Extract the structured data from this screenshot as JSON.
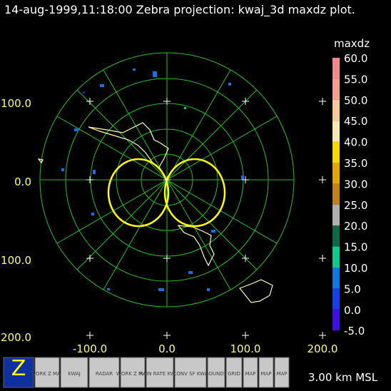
{
  "header": {
    "title": "14-aug-1999,11:18:00  Zebra projection: kwaj_3d maxdz plot."
  },
  "plot": {
    "y_labels": [
      "100.0",
      "0.0",
      "100.0",
      "200.0"
    ],
    "x_labels": [
      "-100.0",
      "0.0",
      "100.0",
      "200.0"
    ]
  },
  "colorbar": {
    "title": "maxdz",
    "labels": [
      "60.0",
      "55.0",
      "50.0",
      "45.0",
      "40.0",
      "35.0",
      "30.0",
      "25.0",
      "20.0",
      "15.0",
      "10.0",
      "5.0",
      "0.0",
      "-5.0"
    ],
    "colors": [
      "#f08a8a",
      "#f4a090",
      "#f6c8a0",
      "#f8e8b8",
      "#f4d800",
      "#e0a800",
      "#c08020",
      "#b0b0b0",
      "#106848",
      "#10c890",
      "#1078e0",
      "#1840e8",
      "#4010e0"
    ]
  },
  "toolbar": {
    "icons": [
      {
        "label": "Z"
      },
      {
        "label": "WORK Z MAP"
      },
      {
        "label": "KWAJ"
      },
      {
        "label": "RADAR"
      },
      {
        "label": "WORK Z MAP"
      },
      {
        "label": "RAIN RATE KWAJ"
      },
      {
        "label": "CONV SF KWA"
      },
      {
        "label": "BOUNDS"
      },
      {
        "label": "GRID"
      },
      {
        "label": "MAP"
      },
      {
        "label": "MAP"
      },
      {
        "label": "MAP"
      }
    ],
    "altitude": "3.00 km MSL"
  }
}
